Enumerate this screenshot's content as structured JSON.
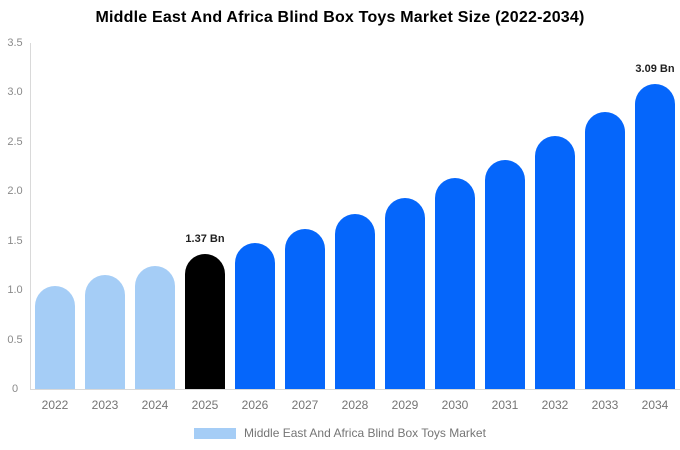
{
  "chart_data": {
    "type": "bar",
    "title": "Middle East And Africa Blind Box Toys Market Size (2022-2034)",
    "unit": "Bn",
    "categories": [
      "2022",
      "2023",
      "2024",
      "2025",
      "2026",
      "2027",
      "2028",
      "2029",
      "2030",
      "2031",
      "2032",
      "2033",
      "2034"
    ],
    "values": [
      1.04,
      1.15,
      1.24,
      1.37,
      1.48,
      1.62,
      1.77,
      1.93,
      2.13,
      2.32,
      2.56,
      2.8,
      3.09
    ],
    "bar_color_keys": [
      "past",
      "past",
      "past",
      "current",
      "forecast",
      "forecast",
      "forecast",
      "forecast",
      "forecast",
      "forecast",
      "forecast",
      "forecast",
      "forecast"
    ],
    "colors": {
      "past": "#a5cdf6",
      "current": "#000000",
      "forecast": "#0566fb"
    },
    "annotations": [
      {
        "category": "2025",
        "text": "1.37 Bn"
      },
      {
        "category": "2034",
        "text": "3.09 Bn"
      }
    ],
    "ylim": [
      0,
      3.5
    ],
    "yticks": [
      0,
      0.5,
      1.0,
      1.5,
      2.0,
      2.5,
      3.0,
      3.5
    ],
    "ytick_labels": [
      "0",
      "0.5",
      "1.0",
      "1.5",
      "2.0",
      "2.5",
      "3.0",
      "3.5"
    ],
    "grid": false,
    "legend_position": "bottom",
    "legend": {
      "label": "Middle East And Africa Blind Box Toys Market",
      "swatch_color": "#a5cdf6"
    }
  }
}
